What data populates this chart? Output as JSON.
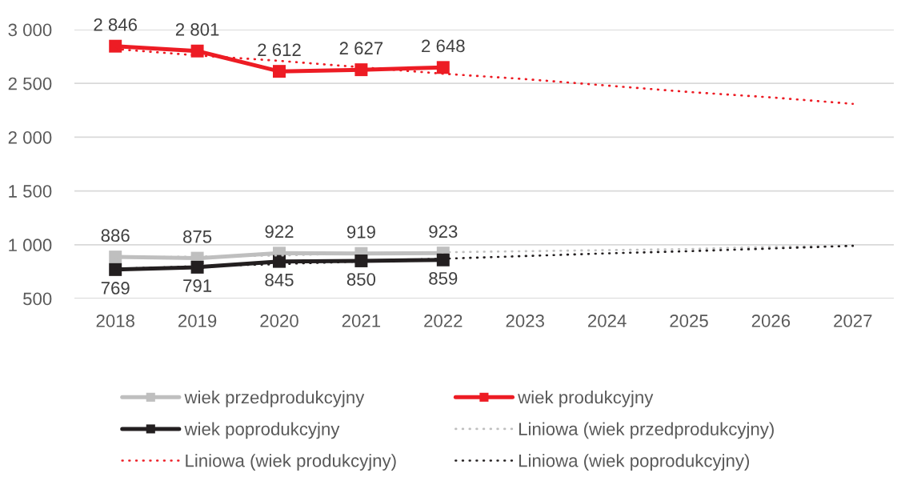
{
  "chart_data": {
    "type": "line",
    "categories": [
      "2018",
      "2019",
      "2020",
      "2021",
      "2022",
      "2023",
      "2024",
      "2025",
      "2026",
      "2027"
    ],
    "series": [
      {
        "name": "wiek przedprodukcyjny",
        "color": "#bfbfbf",
        "values": [
          886,
          875,
          922,
          919,
          923,
          null,
          null,
          null,
          null,
          null
        ],
        "value_labels": [
          "886",
          "875",
          "922",
          "919",
          "923",
          null,
          null,
          null,
          null,
          null
        ]
      },
      {
        "name": "wiek produkcyjny",
        "color": "#ed1c24",
        "values": [
          2846,
          2801,
          2612,
          2627,
          2648,
          null,
          null,
          null,
          null,
          null
        ],
        "value_labels": [
          "2 846",
          "2 801",
          "2 612",
          "2 627",
          "2 648",
          null,
          null,
          null,
          null,
          null
        ]
      },
      {
        "name": "wiek poprodukcyjny",
        "color": "#231f20",
        "values": [
          769,
          791,
          845,
          850,
          859,
          null,
          null,
          null,
          null,
          null
        ],
        "value_labels": [
          "769",
          "791",
          "845",
          "850",
          "859",
          null,
          null,
          null,
          null,
          null
        ]
      },
      {
        "name": "Liniowa (wiek przedprodukcyjny)",
        "type": "line",
        "color": "#bfbfbf",
        "values": [
          880,
          890,
          900,
          920,
          930,
          940,
          950,
          960,
          980,
          990
        ],
        "marker": "none",
        "line_style": "dotted"
      },
      {
        "name": "Liniowa (wiek produkcyjny)",
        "type": "line",
        "color": "#ed1c24",
        "values": [
          2820,
          2760,
          2710,
          2650,
          2590,
          2540,
          2480,
          2420,
          2370,
          2310
        ],
        "marker": "none",
        "line_style": "dotted"
      },
      {
        "name": "Liniowa (wiek poprodukcyjny)",
        "type": "line",
        "color": "#231f20",
        "values": [
          775,
          800,
          820,
          845,
          870,
          895,
          920,
          940,
          965,
          990
        ],
        "marker": "none",
        "line_style": "dotted"
      }
    ],
    "ylim": [
      500,
      3000
    ],
    "yticks": [
      500,
      {
        "value": 1000,
        "label": "1 000"
      },
      {
        "value": 1500,
        "label": "1 500"
      },
      {
        "value": 2000,
        "label": "2 000"
      },
      {
        "value": 2500,
        "label": "2 500"
      },
      {
        "value": 3000,
        "label": "3 000"
      }
    ],
    "grid": "y",
    "legend": "bottom",
    "marker": "square",
    "line_style": "solid"
  }
}
